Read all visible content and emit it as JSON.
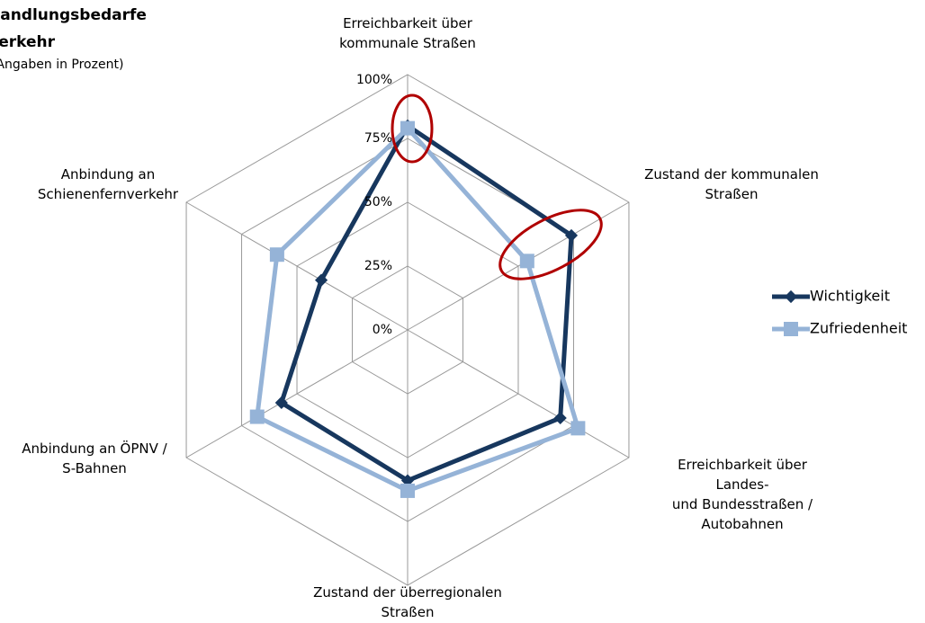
{
  "chart_data": {
    "type": "radar",
    "title": "Handlungsbedarfe",
    "title_line2": "Verkehr",
    "subtitle": "(Angaben in Prozent)",
    "categories": [
      "Erreichbarkeit über\nkommunale Straßen",
      "Zustand der kommunalen\nStraßen",
      "Erreichbarkeit über Landes-\nund Bundesstraßen /\nAutobahnen",
      "Zustand der überregionalen\nStraßen",
      "Anbindung an ÖPNV /\nS-Bahnen",
      "Anbindung an\nSchienenfernverkehr"
    ],
    "series": [
      {
        "name": "Wichtigkeit",
        "color": "#17375e",
        "values": [
          80,
          74,
          69,
          59,
          57,
          39
        ]
      },
      {
        "name": "Zufriedenheit",
        "color": "#95b3d7",
        "values": [
          79,
          54,
          77,
          63,
          68,
          59
        ]
      }
    ],
    "ylim": [
      0,
      100
    ],
    "yticks": [
      {
        "value": 0,
        "label": "0%"
      },
      {
        "value": 25,
        "label": "25%"
      },
      {
        "value": 50,
        "label": "50%"
      },
      {
        "value": 75,
        "label": "75%"
      },
      {
        "value": 100,
        "label": "100%"
      }
    ],
    "grid": true,
    "legend": "right"
  }
}
